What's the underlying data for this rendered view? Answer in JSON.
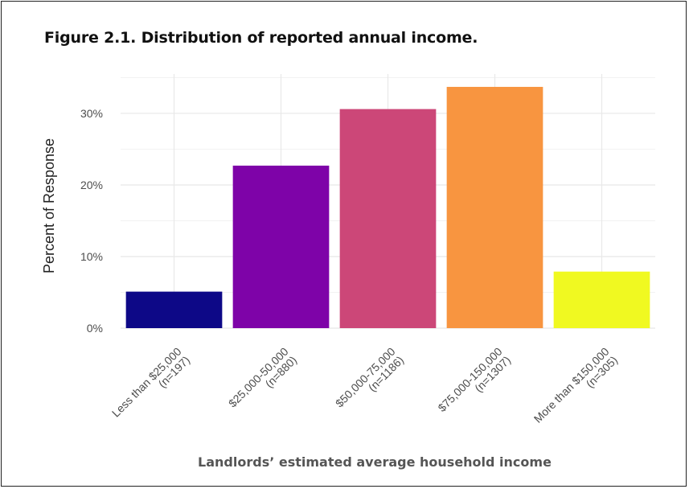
{
  "figure": {
    "title": "Figure 2.1. Distribution of reported annual income."
  },
  "chart_data": {
    "type": "bar",
    "categories": [
      [
        "Less than $25,000",
        "(n=197)"
      ],
      [
        "$25,000-50,000",
        "(n=880)"
      ],
      [
        "$50,000-75,000",
        "(n=1186)"
      ],
      [
        "$75,000-150,000",
        "(n=1307)"
      ],
      [
        "More than $150,000",
        "(n=305)"
      ]
    ],
    "values": [
      5.1,
      22.7,
      30.6,
      33.7,
      7.9
    ],
    "colors": [
      "#0d0887",
      "#7e03a8",
      "#cc4778",
      "#f89540",
      "#f0f921"
    ],
    "ylim": [
      0,
      35.5
    ],
    "yticks": [
      0,
      10,
      20,
      30
    ],
    "ytick_labels": [
      "0%",
      "10%",
      "20%",
      "30%"
    ],
    "xlabel": "Landlords’ estimated average household income",
    "ylabel": "Percent of Response",
    "grid": true,
    "legend": "none"
  }
}
